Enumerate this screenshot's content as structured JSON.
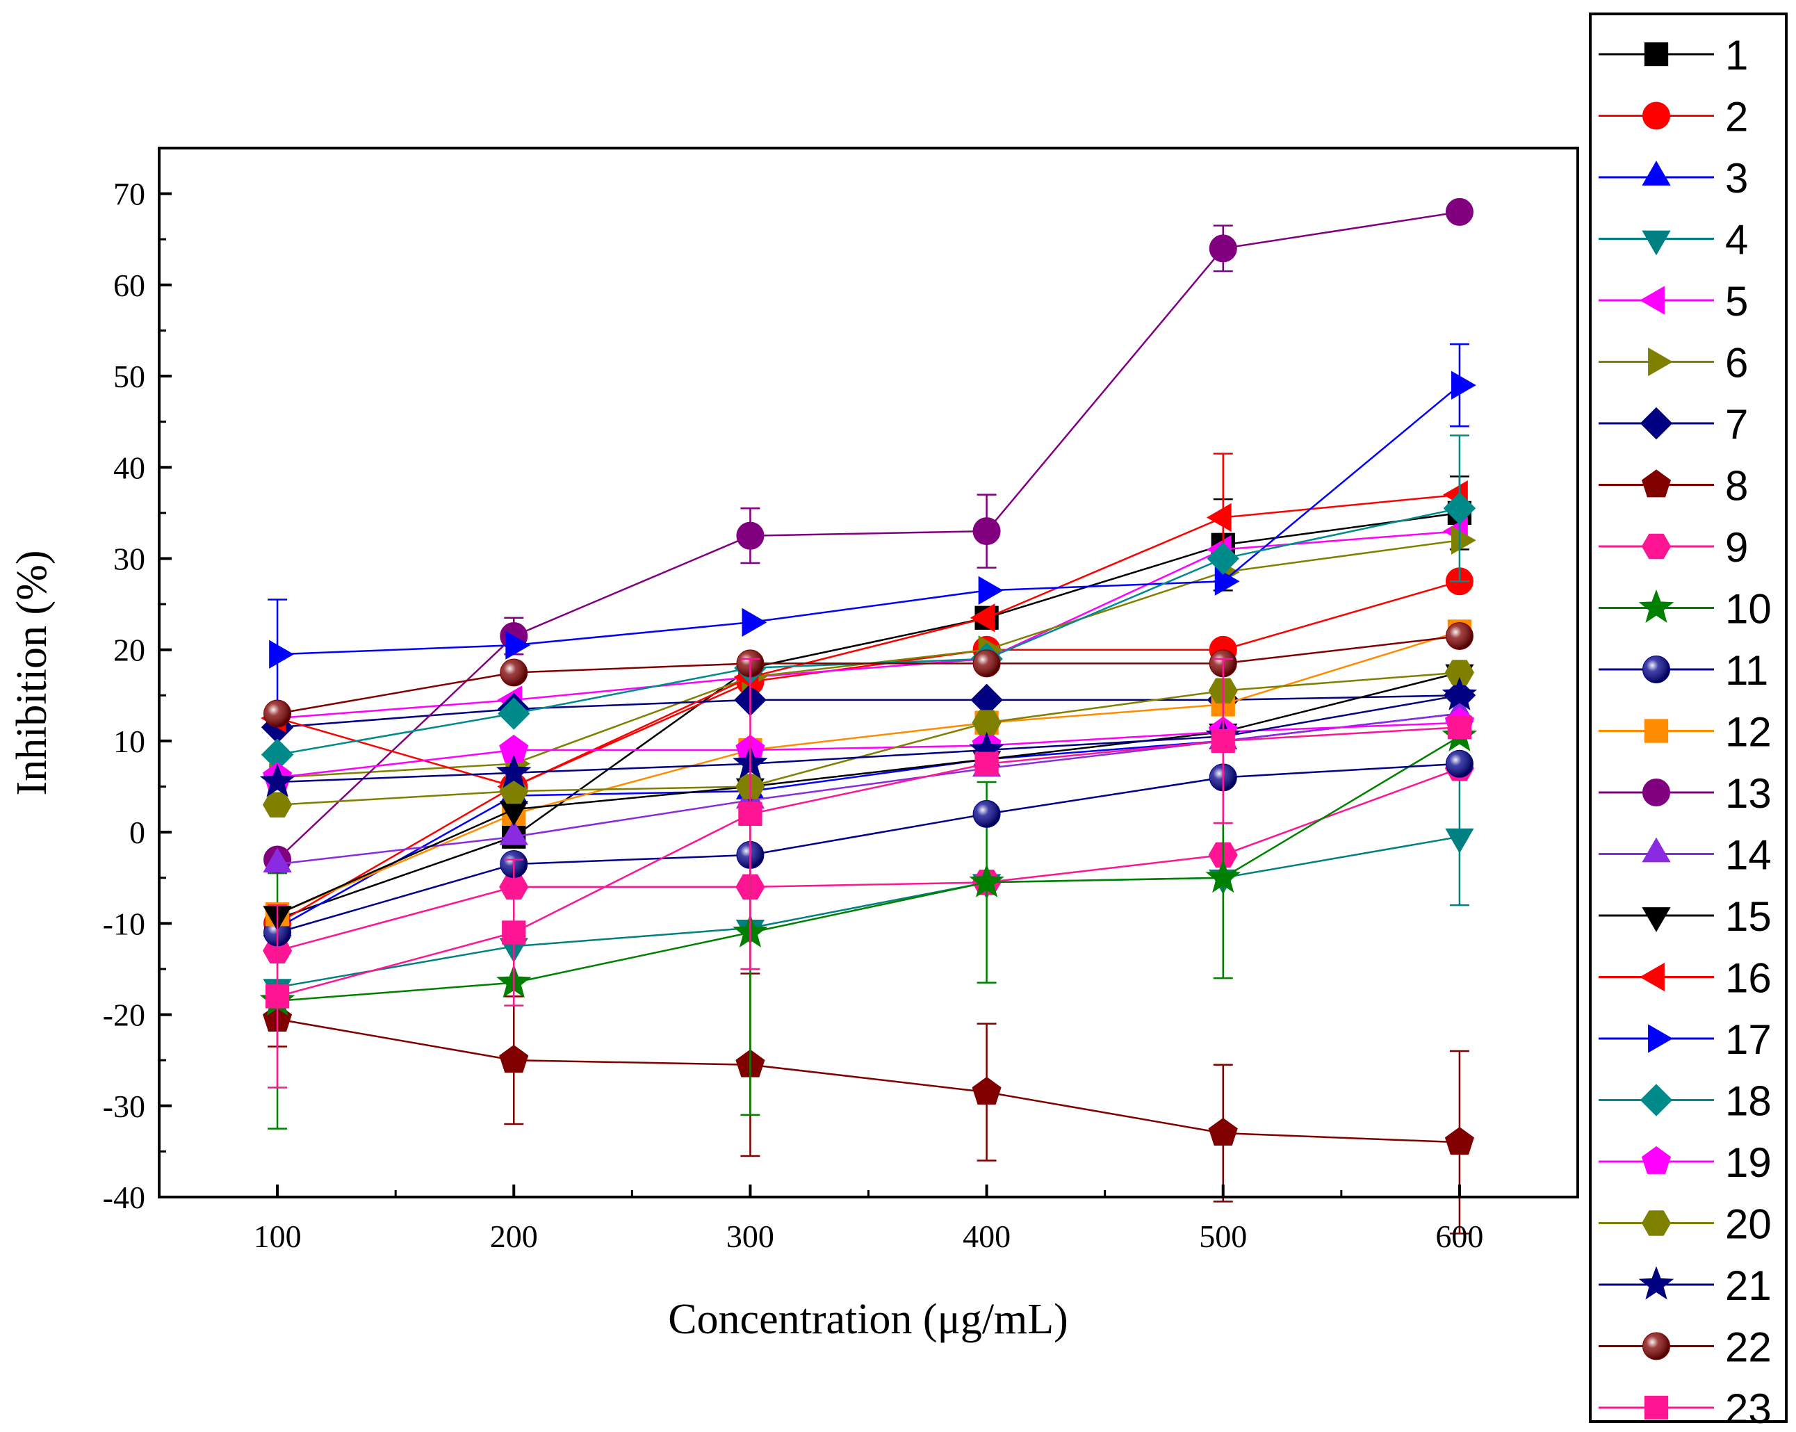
{
  "chart_data": {
    "type": "line",
    "title": "",
    "xlabel": "Concentration (μg/mL)",
    "ylabel": "Inhibition (%)",
    "x": [
      100,
      200,
      300,
      400,
      500,
      600
    ],
    "xlim": [
      50,
      650
    ],
    "ylim": [
      -40,
      75
    ],
    "x_ticks": [
      100,
      200,
      300,
      400,
      500,
      600
    ],
    "x_tick_labels": [
      "100",
      "200",
      "300",
      "400",
      "500",
      "600"
    ],
    "y_ticks": [
      -40,
      -30,
      -20,
      -10,
      0,
      10,
      20,
      30,
      40,
      50,
      60,
      70
    ],
    "y_tick_labels": [
      "-40",
      "-30",
      "-20",
      "-10",
      "0",
      "10",
      "20",
      "30",
      "40",
      "50",
      "60",
      "70"
    ],
    "grid": false,
    "legend_position": "right",
    "series": [
      {
        "name": "1",
        "color": "#000000",
        "marker": "square",
        "values": [
          -9.5,
          -0.5,
          18,
          23.5,
          31.5,
          35
        ],
        "errors": [
          0,
          0,
          0,
          0,
          5,
          4
        ]
      },
      {
        "name": "2",
        "color": "#ff0000",
        "marker": "circle",
        "values": [
          -10,
          5,
          16.5,
          20,
          20,
          27.5
        ],
        "errors": [
          0,
          0,
          0,
          0,
          0,
          0
        ]
      },
      {
        "name": "3",
        "color": "#0000ff",
        "marker": "triangle-up",
        "values": [
          -10.5,
          4,
          4.5,
          8,
          10,
          13
        ],
        "errors": [
          0,
          0,
          0,
          0,
          0,
          0
        ]
      },
      {
        "name": "4",
        "color": "#008080",
        "marker": "triangle-down",
        "values": [
          -17,
          -12.5,
          -10.5,
          -5.5,
          -5,
          -0.5
        ],
        "errors": [
          0,
          0,
          0,
          0,
          0,
          7.5
        ]
      },
      {
        "name": "5",
        "color": "#ff00ff",
        "marker": "triangle-left",
        "values": [
          12.5,
          14.5,
          17,
          19,
          31,
          33
        ],
        "errors": [
          0,
          0,
          0,
          0,
          0,
          0
        ]
      },
      {
        "name": "6",
        "color": "#808000",
        "marker": "triangle-right",
        "values": [
          6,
          7.5,
          17,
          20,
          28.5,
          32
        ],
        "errors": [
          0,
          0,
          0,
          0,
          0,
          0
        ]
      },
      {
        "name": "7",
        "color": "#000080",
        "marker": "diamond",
        "values": [
          11.5,
          13.5,
          14.5,
          14.5,
          14.5,
          15
        ],
        "errors": [
          0,
          0,
          0,
          0,
          0,
          0
        ]
      },
      {
        "name": "8",
        "color": "#800000",
        "marker": "pentagon",
        "values": [
          -20.5,
          -25,
          -25.5,
          -28.5,
          -33,
          -34
        ],
        "errors": [
          3,
          7,
          10,
          7.5,
          7.5,
          10
        ]
      },
      {
        "name": "9",
        "color": "#ff1493",
        "marker": "hexagon",
        "values": [
          -13,
          -6,
          -6,
          -5.5,
          -2.5,
          7
        ],
        "errors": [
          0,
          0,
          0,
          0,
          0,
          0
        ]
      },
      {
        "name": "10",
        "color": "#008000",
        "marker": "star",
        "values": [
          -18.5,
          -16.5,
          -11,
          -5.5,
          -5,
          10.5
        ],
        "errors": [
          14,
          0,
          20,
          11,
          11,
          0
        ]
      },
      {
        "name": "11",
        "color": "#00008b",
        "marker": "sphere",
        "values": [
          -11,
          -3.5,
          -2.5,
          2,
          6,
          7.5
        ],
        "errors": [
          0,
          0,
          0,
          0,
          0,
          0
        ]
      },
      {
        "name": "12",
        "color": "#ff8c00",
        "marker": "square",
        "values": [
          -9,
          2,
          9,
          12,
          14,
          22
        ],
        "errors": [
          0,
          0,
          0,
          0,
          0,
          0
        ]
      },
      {
        "name": "13",
        "color": "#800080",
        "marker": "circle",
        "values": [
          -3,
          21.5,
          32.5,
          33,
          64,
          68
        ],
        "errors": [
          0,
          2,
          3,
          4,
          2.5,
          0
        ]
      },
      {
        "name": "14",
        "color": "#8a2be2",
        "marker": "triangle-up",
        "values": [
          -3.5,
          -0.5,
          3.5,
          7,
          10,
          13
        ],
        "errors": [
          0,
          0,
          0,
          0,
          0,
          0
        ]
      },
      {
        "name": "15",
        "color": "#000000",
        "marker": "triangle-down",
        "values": [
          -9,
          2.5,
          5,
          8,
          11,
          17.5
        ],
        "errors": [
          0,
          0,
          0,
          0,
          0,
          0
        ]
      },
      {
        "name": "16",
        "color": "#ff0000",
        "marker": "triangle-left",
        "values": [
          12.5,
          5,
          17,
          23.5,
          34.5,
          37
        ],
        "errors": [
          0,
          0,
          0,
          0,
          7,
          0
        ]
      },
      {
        "name": "17",
        "color": "#0000ff",
        "marker": "triangle-right",
        "values": [
          19.5,
          20.5,
          23,
          26.5,
          27.5,
          49
        ],
        "errors": [
          6,
          0,
          0,
          0,
          0,
          4.5
        ]
      },
      {
        "name": "18",
        "color": "#008b8b",
        "marker": "diamond",
        "values": [
          8.5,
          13,
          18,
          19,
          30,
          35.5
        ],
        "errors": [
          0,
          0,
          0,
          0,
          0,
          8
        ]
      },
      {
        "name": "19",
        "color": "#ff00ff",
        "marker": "pentagon",
        "values": [
          6,
          9,
          9,
          9.5,
          11,
          12
        ],
        "errors": [
          0,
          0,
          0,
          0,
          0,
          0
        ]
      },
      {
        "name": "20",
        "color": "#808000",
        "marker": "hexagon",
        "values": [
          3,
          4.5,
          5,
          12,
          15.5,
          17.5
        ],
        "errors": [
          0,
          0,
          0,
          0,
          0,
          0
        ]
      },
      {
        "name": "21",
        "color": "#000080",
        "marker": "star",
        "values": [
          5.5,
          6.5,
          7.5,
          9,
          10.5,
          15
        ],
        "errors": [
          0,
          0,
          0,
          0,
          0,
          0
        ]
      },
      {
        "name": "22",
        "color": "#800000",
        "marker": "sphere",
        "values": [
          13,
          17.5,
          18.5,
          18.5,
          18.5,
          21.5
        ],
        "errors": [
          0,
          0,
          0,
          0,
          0,
          0
        ]
      },
      {
        "name": "23",
        "color": "#ff1493",
        "marker": "square",
        "values": [
          -18,
          -11,
          2,
          7.5,
          10,
          11.5
        ],
        "errors": [
          10,
          8,
          17,
          0,
          9,
          0
        ]
      }
    ]
  }
}
